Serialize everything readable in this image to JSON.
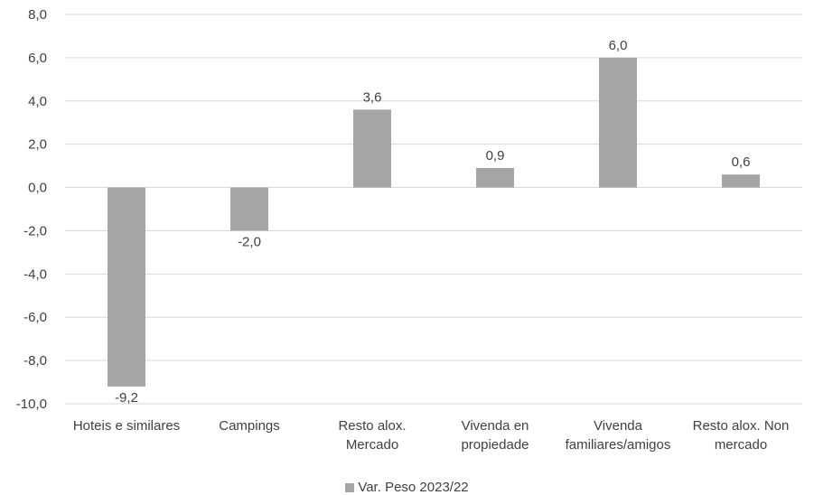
{
  "chart_data": {
    "type": "bar",
    "categories": [
      [
        "Hoteis e similares"
      ],
      [
        "Campings"
      ],
      [
        "Resto alox.",
        "Mercado"
      ],
      [
        "Vivenda en",
        "propiedade"
      ],
      [
        "Vivenda",
        "familiares/amigos"
      ],
      [
        "Resto alox. Non",
        "mercado"
      ]
    ],
    "series": [
      {
        "name": "Var. Peso 2023/22",
        "values": [
          -9.2,
          -2.0,
          3.6,
          0.9,
          6.0,
          0.6
        ],
        "labels": [
          "-9,2",
          "-2,0",
          "3,6",
          "0,9",
          "6,0",
          "0,6"
        ],
        "color": "#a5a5a5"
      }
    ],
    "ylim": [
      -10,
      8
    ],
    "yticks": [
      "-10,0",
      "-8,0",
      "-6,0",
      "-4,0",
      "-2,0",
      "0,0",
      "2,0",
      "4,0",
      "6,0",
      "8,0"
    ],
    "ytick_values": [
      -10,
      -8,
      -6,
      -4,
      -2,
      0,
      2,
      4,
      6,
      8
    ],
    "grid": true,
    "gridColor": "#d9d9d9",
    "legend_position": "bottom",
    "title": "",
    "xlabel": "",
    "ylabel": ""
  }
}
